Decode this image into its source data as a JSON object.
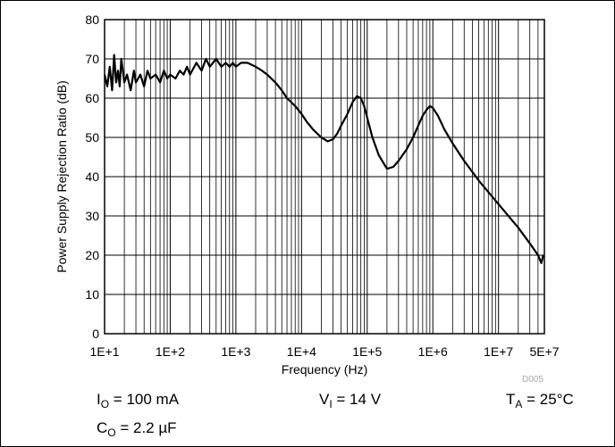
{
  "chart_data": {
    "type": "line",
    "xlabel": "Frequency (Hz)",
    "ylabel": "Power Supply Rejection Ratio (dB)",
    "xscale": "log",
    "xlim": [
      10,
      50000000
    ],
    "ylim": [
      0,
      80
    ],
    "x_ticks": [
      10,
      100,
      1000,
      10000,
      100000,
      1000000,
      10000000,
      50000000
    ],
    "x_tick_labels": [
      "1E+1",
      "1E+2",
      "1E+3",
      "1E+4",
      "1E+5",
      "1E+6",
      "1E+7",
      "5E+7"
    ],
    "y_ticks": [
      0,
      10,
      20,
      30,
      40,
      50,
      60,
      70,
      80
    ],
    "y_tick_labels": [
      "0",
      "10",
      "20",
      "30",
      "40",
      "50",
      "60",
      "70",
      "80"
    ],
    "grid": true,
    "series": [
      {
        "color": "#000000",
        "x": [
          10,
          11,
          12,
          13,
          14,
          15,
          16,
          17,
          18,
          20,
          22,
          25,
          28,
          30,
          35,
          40,
          45,
          50,
          60,
          70,
          80,
          90,
          100,
          120,
          140,
          160,
          180,
          200,
          250,
          300,
          350,
          400,
          500,
          600,
          700,
          800,
          900,
          1000,
          1200,
          1500,
          2000,
          2500,
          3000,
          4000,
          5000,
          6000,
          8000,
          10000,
          12000,
          15000,
          20000,
          25000,
          30000,
          35000,
          40000,
          50000,
          60000,
          70000,
          80000,
          90000,
          100000,
          120000,
          150000,
          200000,
          250000,
          300000,
          400000,
          500000,
          600000,
          700000,
          800000,
          900000,
          1000000,
          1200000,
          1500000,
          2000000,
          3000000,
          5000000,
          10000000,
          20000000,
          30000000,
          40000000,
          45000000,
          48000000
        ],
        "y": [
          66,
          63,
          68,
          62,
          71,
          64,
          67,
          63,
          70,
          64,
          66,
          62,
          67,
          64,
          66,
          63,
          67,
          65,
          66,
          64,
          67,
          65,
          66,
          65,
          67,
          66,
          68,
          66,
          69,
          67,
          70,
          68,
          70,
          68,
          69,
          68,
          69,
          68,
          69,
          69,
          68,
          67,
          66,
          64,
          62,
          60,
          58,
          56,
          54,
          52,
          50,
          49,
          49.5,
          51,
          53,
          56,
          59,
          60.5,
          60,
          58,
          55,
          50,
          45.5,
          42,
          42.5,
          44,
          47,
          50,
          53,
          55.5,
          57,
          58,
          57.5,
          55.5,
          52,
          48.5,
          44,
          39,
          33,
          27,
          23,
          20,
          18,
          20
        ]
      }
    ]
  },
  "conditions": {
    "io": {
      "sym": "I",
      "sub": "O",
      "text": " = 100 mA"
    },
    "vi": {
      "sym": "V",
      "sub": "I",
      "text": " = 14 V"
    },
    "ta": {
      "sym": "T",
      "sub": "A",
      "text": " = 25°C"
    },
    "co": {
      "sym": "C",
      "sub": "O",
      "text": " = 2.2 µF"
    }
  },
  "figure_id": "D005"
}
